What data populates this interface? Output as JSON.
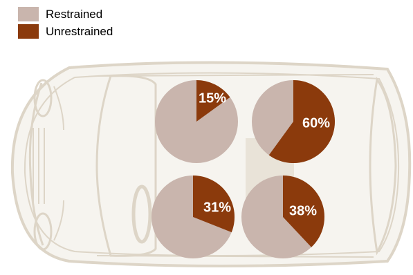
{
  "chart_data": {
    "type": "pie",
    "legend": [
      {
        "label": "Restrained",
        "color": "#c9b5ad"
      },
      {
        "label": "Unrestrained",
        "color": "#8b3a0c"
      }
    ],
    "pies": [
      {
        "seat": "front-left",
        "restrained": 85,
        "unrestrained": 15,
        "label": "15%"
      },
      {
        "seat": "rear-left",
        "restrained": 40,
        "unrestrained": 60,
        "label": "60%"
      },
      {
        "seat": "front-right",
        "restrained": 69,
        "unrestrained": 31,
        "label": "31%"
      },
      {
        "seat": "rear-right",
        "restrained": 62,
        "unrestrained": 38,
        "label": "38%"
      }
    ],
    "legend_placement": "top-left"
  },
  "colors": {
    "car_outline": "#ddd5c7",
    "car_fill": "#f6f4ef",
    "car_detail": "#e9e3d8"
  }
}
